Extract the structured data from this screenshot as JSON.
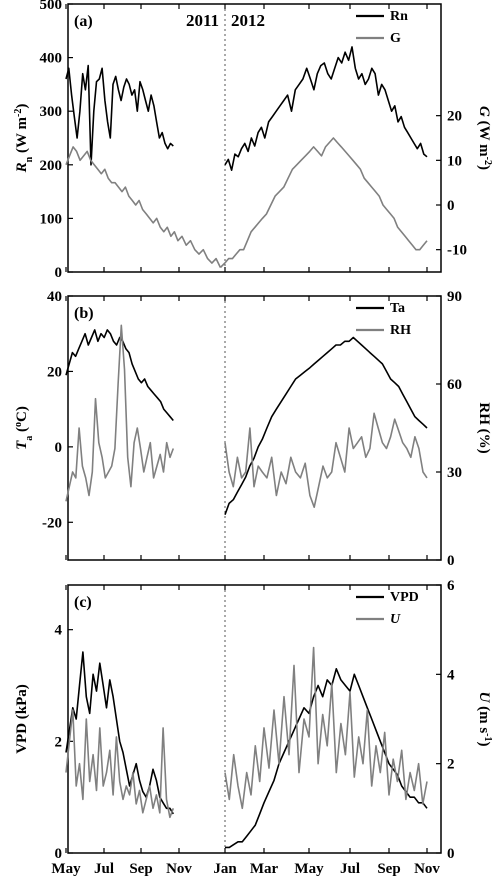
{
  "chart_data": [
    {
      "panel": "(a)",
      "type": "line",
      "year_labels": [
        "2011",
        "2012"
      ],
      "x_tick_labels": [
        "May",
        "Jul",
        "Sep",
        "Nov",
        "Jan",
        "Mar",
        "May",
        "Jul",
        "Sep",
        "Nov"
      ],
      "left_axis": {
        "label_main": "R",
        "label_sub": "n",
        "label_unit": " (W m",
        "label_sup": "-2",
        "label_end": ")",
        "ylim": [
          0,
          500
        ],
        "ticks": [
          "0",
          "100",
          "200",
          "300",
          "400",
          "500"
        ]
      },
      "right_axis": {
        "label_main": "G",
        "label_unit": " (W m",
        "label_sup": "-2",
        "label_end": ")",
        "ylim": [
          -15,
          45
        ],
        "ticks": [
          "-10",
          "0",
          "10",
          "20"
        ]
      },
      "series": [
        {
          "name": "Rn",
          "axis": "left",
          "color": "#000000",
          "segments": [
            {
              "x_month_start": 0.0,
              "x_month_end": 5.7,
              "values": [
                360,
                380,
                330,
                290,
                250,
                300,
                370,
                340,
                385,
                200,
                300,
                355,
                360,
                380,
                320,
                280,
                250,
                350,
                365,
                340,
                320,
                345,
                360,
                350,
                330,
                340,
                300,
                355,
                340,
                320,
                300,
                330,
                310,
                280,
                250,
                260,
                240,
                230,
                240,
                235
              ]
            },
            {
              "x_month_start": 8.0,
              "x_month_end": 18.0,
              "values": [
                200,
                210,
                190,
                220,
                215,
                230,
                240,
                225,
                250,
                235,
                260,
                270,
                250,
                280,
                290,
                300,
                310,
                320,
                330,
                300,
                340,
                350,
                360,
                380,
                360,
                340,
                370,
                385,
                390,
                370,
                360,
                380,
                400,
                390,
                410,
                395,
                420,
                380,
                360,
                370,
                350,
                360,
                380,
                370,
                330,
                350,
                340,
                320,
                300,
                310,
                280,
                290,
                270,
                260,
                250,
                240,
                230,
                240,
                220,
                215
              ]
            }
          ]
        },
        {
          "name": "G",
          "axis": "right",
          "color": "#808080",
          "segments": [
            {
              "x_month_start": 0.0,
              "x_month_end": 7.8,
              "values": [
                9,
                11,
                13,
                12,
                10,
                11,
                12,
                10,
                9,
                8,
                7,
                8,
                6,
                5,
                5,
                4,
                3,
                4,
                2,
                1,
                0,
                1,
                -1,
                -2,
                -3,
                -4,
                -3,
                -5,
                -6,
                -5,
                -7,
                -6,
                -8,
                -7,
                -9,
                -8,
                -10,
                -11,
                -10,
                -12,
                -13,
                -12,
                -14
              ]
            },
            {
              "x_month_start": 7.8,
              "x_month_end": 18.0,
              "values": [
                -14,
                -13,
                -12,
                -12,
                -11,
                -10,
                -10,
                -8,
                -6,
                -5,
                -4,
                -3,
                -2,
                0,
                2,
                3,
                4,
                6,
                8,
                9,
                10,
                11,
                12,
                13,
                12,
                11,
                13,
                14,
                15,
                14,
                13,
                12,
                11,
                10,
                9,
                8,
                6,
                5,
                4,
                3,
                2,
                0,
                -1,
                -2,
                -3,
                -5,
                -6,
                -7,
                -8,
                -9,
                -10,
                -10,
                -9,
                -8
              ]
            }
          ]
        }
      ],
      "legend": [
        "Rn",
        "G"
      ]
    },
    {
      "panel": "(b)",
      "type": "line",
      "x_tick_labels": [
        "May",
        "Jul",
        "Sep",
        "Nov",
        "Jan",
        "Mar",
        "May",
        "Jul",
        "Sep",
        "Nov"
      ],
      "left_axis": {
        "label_main": "T",
        "label_sub": "a",
        "label_unit": " (",
        "label_sup": "o",
        "label_end": "C)",
        "ylim": [
          -30,
          40
        ],
        "ticks": [
          "-20",
          "0",
          "20",
          "40"
        ]
      },
      "right_axis": {
        "label_main": "RH (%)",
        "ylim": [
          0,
          90
        ],
        "ticks": [
          "0",
          "30",
          "60",
          "90"
        ]
      },
      "series": [
        {
          "name": "Ta",
          "axis": "left",
          "color": "#000000",
          "segments": [
            {
              "x_month_start": 0.0,
              "x_month_end": 5.7,
              "values": [
                19,
                22,
                25,
                24,
                26,
                28,
                30,
                27,
                29,
                31,
                28,
                30,
                29,
                31,
                30,
                28,
                27,
                29,
                28,
                26,
                25,
                22,
                20,
                18,
                17,
                18,
                16,
                15,
                14,
                13,
                12,
                10,
                9,
                8,
                7
              ]
            },
            {
              "x_month_start": 8.0,
              "x_month_end": 18.0,
              "values": [
                -18,
                -15,
                -14,
                -12,
                -10,
                -8,
                -5,
                -3,
                0,
                2,
                5,
                8,
                10,
                12,
                14,
                16,
                18,
                19,
                20,
                21,
                22,
                23,
                24,
                25,
                26,
                27,
                27,
                28,
                28,
                29,
                28,
                27,
                26,
                25,
                24,
                23,
                22,
                20,
                18,
                17,
                16,
                14,
                12,
                10,
                8,
                7,
                6,
                5
              ]
            }
          ]
        },
        {
          "name": "RH",
          "axis": "right",
          "color": "#808080",
          "segments": [
            {
              "x_month_start": 0.0,
              "x_month_end": 5.7,
              "values": [
                20,
                25,
                30,
                28,
                45,
                32,
                28,
                22,
                30,
                55,
                40,
                35,
                28,
                30,
                32,
                38,
                60,
                80,
                65,
                35,
                25,
                40,
                45,
                38,
                30,
                35,
                40,
                28,
                32,
                36,
                30,
                40,
                35,
                38
              ]
            },
            {
              "x_month_start": 8.0,
              "x_month_end": 18.0,
              "values": [
                40,
                30,
                25,
                35,
                28,
                30,
                45,
                25,
                32,
                30,
                28,
                35,
                22,
                30,
                26,
                35,
                30,
                28,
                33,
                22,
                18,
                25,
                32,
                28,
                30,
                40,
                35,
                30,
                45,
                38,
                40,
                42,
                35,
                38,
                50,
                45,
                40,
                38,
                42,
                48,
                44,
                40,
                38,
                35,
                42,
                38,
                30,
                28
              ]
            }
          ]
        }
      ],
      "legend": [
        "Ta",
        "RH"
      ]
    },
    {
      "panel": "(c)",
      "type": "line",
      "x_tick_labels": [
        "May",
        "Jul",
        "Sep",
        "Nov",
        "Jan",
        "Mar",
        "May",
        "Jul",
        "Sep",
        "Nov"
      ],
      "left_axis": {
        "label_main": "VPD (kPa)",
        "ylim": [
          0,
          4.8
        ],
        "ticks": [
          "0",
          "2",
          "4"
        ]
      },
      "right_axis": {
        "label_main": "U",
        "label_unit": " (m s",
        "label_sup": "-1",
        "label_end": ")",
        "ylim": [
          0,
          6
        ],
        "ticks": [
          "0",
          "2",
          "4",
          "6"
        ]
      },
      "series": [
        {
          "name": "VPD",
          "axis": "left",
          "color": "#000000",
          "segments": [
            {
              "x_month_start": 0.0,
              "x_month_end": 5.7,
              "values": [
                1.8,
                2.2,
                2.6,
                2.4,
                3.0,
                3.6,
                2.8,
                2.5,
                3.2,
                2.9,
                3.4,
                3.0,
                2.6,
                3.1,
                2.8,
                2.4,
                2.0,
                1.8,
                1.5,
                1.2,
                1.4,
                1.6,
                1.3,
                1.1,
                1.0,
                1.2,
                1.5,
                1.3,
                1.0,
                0.9,
                0.8,
                0.8,
                0.7
              ]
            },
            {
              "x_month_start": 8.0,
              "x_month_end": 18.0,
              "values": [
                0.1,
                0.1,
                0.15,
                0.2,
                0.2,
                0.3,
                0.4,
                0.5,
                0.7,
                0.9,
                1.1,
                1.3,
                1.6,
                1.8,
                2.0,
                2.2,
                2.4,
                2.6,
                2.5,
                2.8,
                3.0,
                2.8,
                3.1,
                3.0,
                3.3,
                3.1,
                3.0,
                2.9,
                3.2,
                3.0,
                2.8,
                2.6,
                2.4,
                2.2,
                2.0,
                1.8,
                1.6,
                1.5,
                1.4,
                1.2,
                1.1,
                1.0,
                1.0,
                0.9,
                0.9,
                0.8
              ]
            }
          ]
        },
        {
          "name": "U",
          "axis": "right",
          "color": "#808080",
          "segments": [
            {
              "x_month_start": 0.0,
              "x_month_end": 5.7,
              "values": [
                1.8,
                2.5,
                3.2,
                1.5,
                2.0,
                1.2,
                3.0,
                1.6,
                2.2,
                1.4,
                2.8,
                1.5,
                1.8,
                2.3,
                1.3,
                2.6,
                1.6,
                1.2,
                1.5,
                1.3,
                1.8,
                1.1,
                1.4,
                0.9,
                1.2,
                1.5,
                1.0,
                1.3,
                0.9,
                2.8,
                1.2,
                0.8,
                1.0
              ]
            },
            {
              "x_month_start": 8.0,
              "x_month_end": 18.0,
              "values": [
                1.8,
                1.2,
                2.2,
                1.5,
                1.0,
                1.8,
                1.3,
                2.4,
                1.6,
                2.8,
                1.9,
                3.2,
                2.0,
                3.5,
                2.2,
                4.2,
                1.8,
                3.0,
                2.6,
                4.6,
                2.0,
                3.1,
                2.4,
                3.8,
                1.8,
                2.9,
                2.2,
                3.6,
                1.7,
                2.6,
                2.0,
                3.2,
                1.5,
                2.4,
                1.8,
                2.7,
                1.3,
                2.1,
                1.6,
                2.3,
                1.2,
                1.8,
                1.4,
                2.0,
                1.1,
                1.6
              ]
            }
          ]
        }
      ],
      "legend": [
        "VPD",
        "U"
      ]
    }
  ]
}
